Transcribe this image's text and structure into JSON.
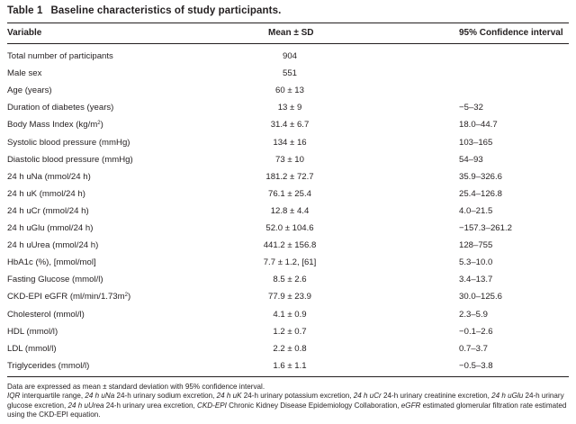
{
  "caption": {
    "label": "Table 1",
    "title": "Baseline characteristics of study participants."
  },
  "headers": {
    "variable": "Variable",
    "mean": "Mean ± SD",
    "ci": "95% Confidence interval"
  },
  "rows": [
    {
      "label": "Total number of participants",
      "mean": "904",
      "ci": ""
    },
    {
      "label": "Male sex",
      "mean": "551",
      "ci": ""
    },
    {
      "label": "Age (years)",
      "mean": "60 ± 13",
      "ci": ""
    },
    {
      "label": "Duration of diabetes (years)",
      "mean": "13 ± 9",
      "ci": "−5–32"
    },
    {
      "label": "Body Mass Index (kg/m",
      "label_sup": "2",
      "label_after": ")",
      "mean": "31.4 ± 6.7",
      "ci": "18.0–44.7"
    },
    {
      "label": "Systolic blood pressure (mmHg)",
      "mean": "134 ± 16",
      "ci": "103–165"
    },
    {
      "label": "Diastolic blood pressure (mmHg)",
      "mean": "73 ± 10",
      "ci": "54–93"
    },
    {
      "label": "24 h uNa (mmol/24 h)",
      "mean": "181.2 ± 72.7",
      "ci": "35.9–326.6"
    },
    {
      "label": "24 h uK (mmol/24 h)",
      "mean": "76.1 ± 25.4",
      "ci": "25.4–126.8"
    },
    {
      "label": "24 h uCr (mmol/24 h)",
      "mean": "12.8 ± 4.4",
      "ci": "4.0–21.5"
    },
    {
      "label": "24 h uGlu (mmol/24 h)",
      "mean": "52.0 ± 104.6",
      "ci": "−157.3–261.2"
    },
    {
      "label": "24 h uUrea (mmol/24 h)",
      "mean": "441.2 ± 156.8",
      "ci": "128–755"
    },
    {
      "label": "HbA1c (%), [mmol/mol]",
      "mean": "7.7 ± 1.2, [61]",
      "ci": "5.3–10.0"
    },
    {
      "label": "Fasting Glucose (mmol/l)",
      "mean": "8.5 ± 2.6",
      "ci": "3.4–13.7"
    },
    {
      "label": "CKD-EPI eGFR (ml/min/1.73m",
      "label_sup": "2",
      "label_after": ")",
      "mean": "77.9 ± 23.9",
      "ci": "30.0–125.6"
    },
    {
      "label": "Cholesterol (mmol/l)",
      "mean": "4.1 ± 0.9",
      "ci": "2.3–5.9"
    },
    {
      "label": "HDL (mmol/l)",
      "mean": "1.2 ± 0.7",
      "ci": "−0.1–2.6"
    },
    {
      "label": "LDL (mmol/l)",
      "mean": "2.2 ± 0.8",
      "ci": "0.7–3.7"
    },
    {
      "label": "Triglycerides (mmol/l)",
      "mean": "1.6 ± 1.1",
      "ci": "−0.5–3.8"
    }
  ],
  "footnotes": {
    "line1": "Data are expressed as mean ± standard deviation with 95% confidence interval.",
    "abbrev": [
      {
        "term": "IQR",
        "desc": " interquartile range, "
      },
      {
        "term": "24 h uNa",
        "desc": " 24-h urinary sodium excretion, "
      },
      {
        "term": "24 h uK",
        "desc": " 24-h urinary potassium excretion, "
      },
      {
        "term": "24 h uCr",
        "desc": " 24-h urinary creatinine excretion, "
      },
      {
        "term": "24 h uGlu",
        "desc": " 24-h urinary glucose excretion, "
      },
      {
        "term": "24 h uUrea",
        "desc": " 24-h urinary urea excretion, "
      },
      {
        "term": "CKD-EPI",
        "desc": " Chronic Kidney Disease Epidemiology Collaboration, "
      },
      {
        "term": "eGFR",
        "desc": " estimated glomerular filtration rate estimated using the CKD-EPI equation."
      }
    ]
  }
}
